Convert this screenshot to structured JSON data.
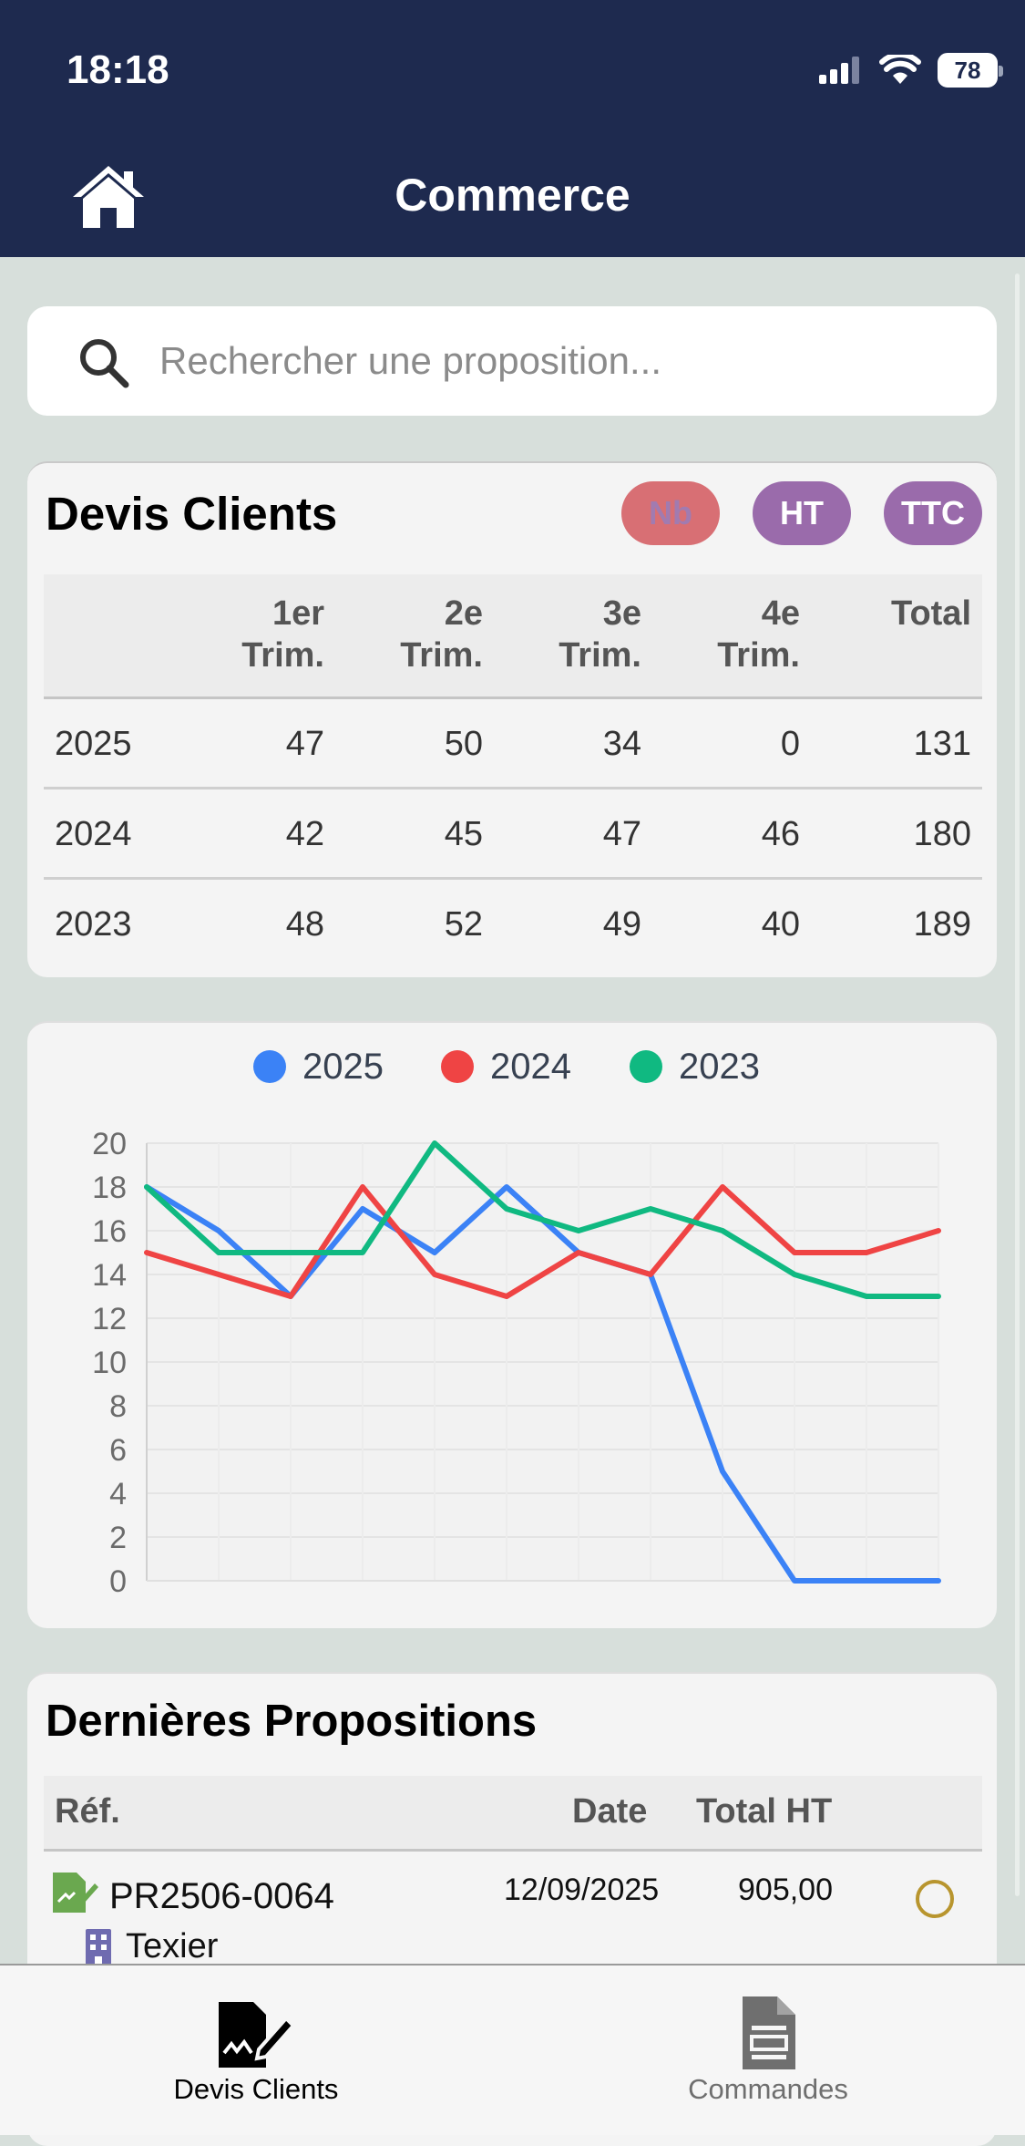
{
  "status": {
    "time": "18:18",
    "battery": "78"
  },
  "header": {
    "title": "Commerce",
    "home_icon": "home-icon"
  },
  "search": {
    "placeholder": "Rechercher une proposition..."
  },
  "devis": {
    "title": "Devis Clients",
    "toggles": [
      "Nb",
      "HT",
      "TTC"
    ],
    "columns": [
      "",
      "1er\nTrim.",
      "2e\nTrim.",
      "3e\nTrim.",
      "4e\nTrim.",
      "Total"
    ],
    "rows": [
      [
        "2025",
        "47",
        "50",
        "34",
        "0",
        "131"
      ],
      [
        "2024",
        "42",
        "45",
        "47",
        "46",
        "180"
      ],
      [
        "2023",
        "48",
        "52",
        "49",
        "40",
        "189"
      ]
    ]
  },
  "chart_data": {
    "type": "line",
    "title": "",
    "xlabel": "",
    "ylabel": "",
    "x": [
      1,
      2,
      3,
      4,
      5,
      6,
      7,
      8,
      9,
      10,
      11,
      12
    ],
    "ylim": [
      0,
      20
    ],
    "yticks": [
      0,
      2,
      4,
      6,
      8,
      10,
      12,
      14,
      16,
      18,
      20
    ],
    "grid": true,
    "legend": "top",
    "series": [
      {
        "name": "2025",
        "color": "#3b82f6",
        "values": [
          18,
          16,
          13,
          17,
          15,
          18,
          15,
          14,
          5,
          0,
          0,
          0
        ]
      },
      {
        "name": "2024",
        "color": "#ef4444",
        "values": [
          15,
          14,
          13,
          18,
          14,
          13,
          15,
          14,
          18,
          15,
          15,
          16
        ]
      },
      {
        "name": "2023",
        "color": "#10b981",
        "values": [
          18,
          15,
          15,
          15,
          20,
          17,
          16,
          17,
          16,
          14,
          13,
          13
        ]
      }
    ]
  },
  "propositions": {
    "title": "Dernières Propositions",
    "columns": {
      "ref": "Réf.",
      "date": "Date",
      "total": "Total HT"
    },
    "items": [
      {
        "ref": "PR2506-0064",
        "thirdparty": "Texier",
        "date": "12/09/2025",
        "total": "905,00"
      }
    ]
  },
  "tabbar": {
    "items": [
      "Devis Clients",
      "Commandes"
    ]
  }
}
